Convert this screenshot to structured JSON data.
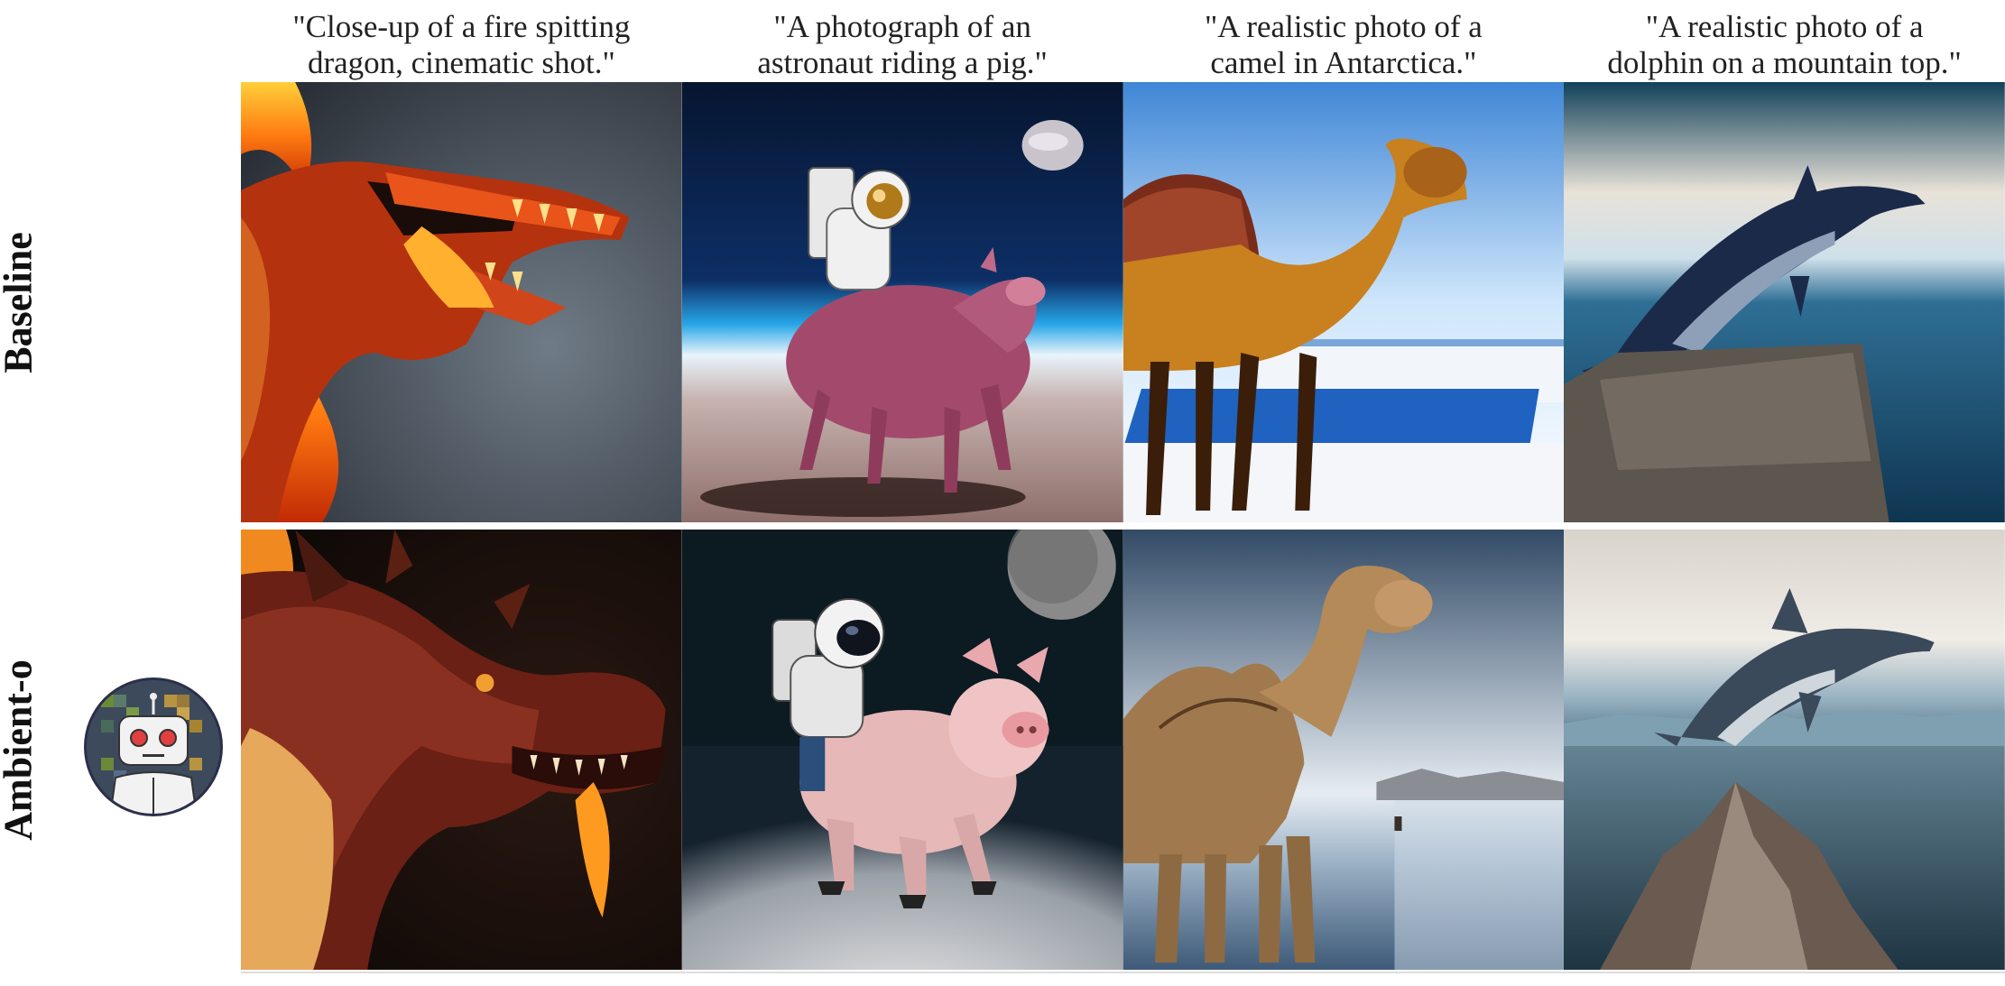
{
  "captions": [
    "\"Close-up of a fire spitting\ndragon, cinematic shot.\"",
    "\"A photograph of an\nastronaut riding a pig.\"",
    "\"A realistic photo of a\ncamel in Antarctica.\"",
    "\"A realistic photo of a\ndolphin on a mountain top.\""
  ],
  "rows": [
    "Baseline",
    "Ambient-o"
  ],
  "icons": {
    "avatar": "robot-avatar-icon"
  },
  "colors": {
    "avatar_ring": "#2b2f4a",
    "avatar_bg_green": "#6a8a3a",
    "avatar_bg_gold": "#b89440",
    "robot_eye": "#e04040"
  }
}
